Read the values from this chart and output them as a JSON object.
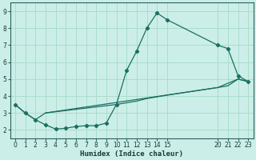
{
  "xlabel": "Humidex (Indice chaleur)",
  "background_color": "#cceee8",
  "grid_color": "#aaddcc",
  "line_color": "#1a7060",
  "xlim": [
    -0.5,
    23.5
  ],
  "ylim": [
    1.5,
    9.5
  ],
  "xticks": [
    0,
    1,
    2,
    3,
    4,
    5,
    6,
    7,
    8,
    9,
    10,
    11,
    12,
    13,
    14,
    15,
    20,
    21,
    22,
    23
  ],
  "yticks": [
    2,
    3,
    4,
    5,
    6,
    7,
    8,
    9
  ],
  "line1_x": [
    0,
    1,
    2,
    3,
    4,
    5,
    6,
    7,
    8,
    9,
    10,
    11,
    12,
    13,
    14,
    15,
    20,
    21,
    22,
    23
  ],
  "line1_y": [
    3.5,
    3.0,
    2.6,
    2.3,
    2.05,
    2.1,
    2.2,
    2.25,
    2.25,
    2.4,
    3.5,
    5.5,
    6.65,
    8.0,
    8.9,
    8.5,
    7.0,
    6.8,
    5.2,
    4.85
  ],
  "line2_x": [
    0,
    1,
    2,
    3,
    20,
    21,
    22,
    23
  ],
  "line2_y": [
    3.5,
    3.0,
    2.6,
    3.0,
    4.5,
    4.6,
    5.0,
    4.85
  ],
  "line3_x": [
    3,
    10,
    11,
    12,
    13,
    14,
    15,
    20,
    22,
    23
  ],
  "line3_y": [
    3.0,
    3.5,
    3.6,
    3.7,
    3.85,
    3.95,
    4.05,
    4.5,
    5.0,
    4.85
  ]
}
